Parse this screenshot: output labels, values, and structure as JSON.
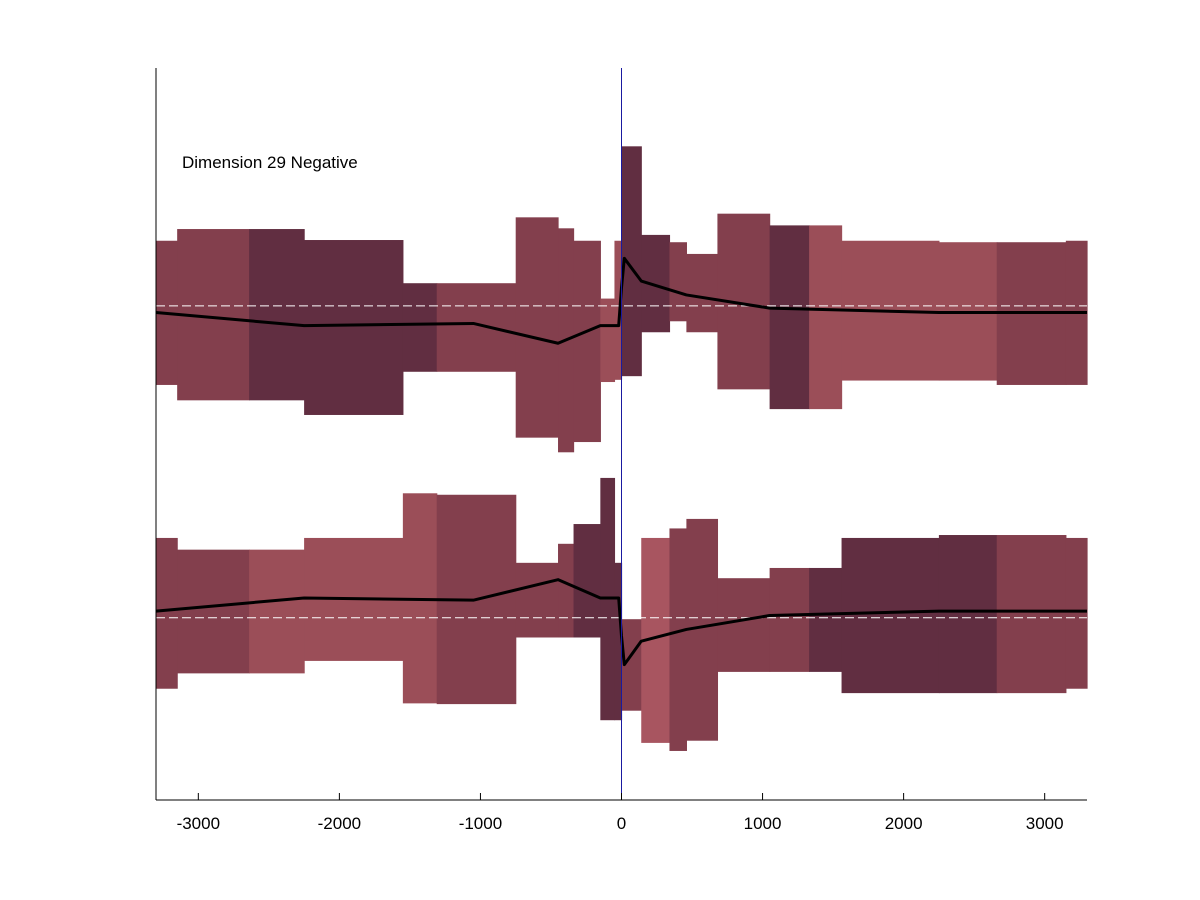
{
  "chart_data": {
    "type": "area",
    "annotation": "Dimension 29 Negative",
    "xlim": [
      -3300,
      3300
    ],
    "ylim": [
      0,
      1
    ],
    "xticks": [
      -3000,
      -2000,
      -1000,
      0,
      1000,
      2000,
      3000
    ],
    "xtick_labels": [
      "-3000",
      "-2000",
      "-1000",
      "0",
      "1000",
      "2000",
      "3000"
    ],
    "zero_line_x": 0,
    "colors": {
      "mid": "#833f4d",
      "dark": "#612e41",
      "light": "#9b4e58",
      "lighter": "#a85560",
      "line": "#000000",
      "reference": "#ffffff",
      "zero_line": "#1a1aa0"
    },
    "panels": [
      {
        "name": "upper",
        "baseline": 0.675,
        "segments": [
          {
            "x0": -3300,
            "x1": -3150,
            "lo": 0.567,
            "hi": 0.764,
            "shade": "mid"
          },
          {
            "x0": -3150,
            "x1": -2640,
            "lo": 0.546,
            "hi": 0.78,
            "shade": "mid"
          },
          {
            "x0": -2640,
            "x1": -2250,
            "lo": 0.546,
            "hi": 0.78,
            "shade": "dark"
          },
          {
            "x0": -2250,
            "x1": -1550,
            "lo": 0.526,
            "hi": 0.765,
            "shade": "dark"
          },
          {
            "x0": -1550,
            "x1": -1310,
            "lo": 0.585,
            "hi": 0.706,
            "shade": "dark"
          },
          {
            "x0": -1310,
            "x1": -750,
            "lo": 0.585,
            "hi": 0.706,
            "shade": "mid"
          },
          {
            "x0": -750,
            "x1": -450,
            "lo": 0.495,
            "hi": 0.796,
            "shade": "mid"
          },
          {
            "x0": -450,
            "x1": -340,
            "lo": 0.475,
            "hi": 0.781,
            "shade": "mid"
          },
          {
            "x0": -340,
            "x1": -150,
            "lo": 0.489,
            "hi": 0.764,
            "shade": "mid"
          },
          {
            "x0": -150,
            "x1": -50,
            "lo": 0.571,
            "hi": 0.685,
            "shade": "light"
          },
          {
            "x0": -50,
            "x1": 0,
            "lo": 0.574,
            "hi": 0.764,
            "shade": "light"
          },
          {
            "x0": 0,
            "x1": 140,
            "lo": 0.579,
            "hi": 0.893,
            "shade": "dark"
          },
          {
            "x0": 140,
            "x1": 340,
            "lo": 0.639,
            "hi": 0.772,
            "shade": "dark"
          },
          {
            "x0": 340,
            "x1": 460,
            "lo": 0.654,
            "hi": 0.762,
            "shade": "mid"
          },
          {
            "x0": 460,
            "x1": 680,
            "lo": 0.639,
            "hi": 0.746,
            "shade": "mid"
          },
          {
            "x0": 680,
            "x1": 1050,
            "lo": 0.561,
            "hi": 0.801,
            "shade": "mid"
          },
          {
            "x0": 1050,
            "x1": 1330,
            "lo": 0.534,
            "hi": 0.785,
            "shade": "dark"
          },
          {
            "x0": 1330,
            "x1": 1560,
            "lo": 0.534,
            "hi": 0.785,
            "shade": "light"
          },
          {
            "x0": 1560,
            "x1": 2250,
            "lo": 0.573,
            "hi": 0.764,
            "shade": "light"
          },
          {
            "x0": 2250,
            "x1": 2660,
            "lo": 0.573,
            "hi": 0.762,
            "shade": "light"
          },
          {
            "x0": 2660,
            "x1": 3150,
            "lo": 0.567,
            "hi": 0.762,
            "shade": "mid"
          },
          {
            "x0": 3150,
            "x1": 3300,
            "lo": 0.567,
            "hi": 0.764,
            "shade": "mid"
          }
        ],
        "mean": {
          "x": [
            -3300,
            -2250,
            -1050,
            -450,
            -150,
            -20,
            0,
            20,
            140,
            460,
            1050,
            2250,
            3300
          ],
          "y": [
            0.666,
            0.648,
            0.651,
            0.624,
            0.648,
            0.648,
            0.7,
            0.74,
            0.709,
            0.69,
            0.672,
            0.666,
            0.666
          ]
        }
      },
      {
        "name": "lower",
        "baseline": 0.249,
        "segments": [
          {
            "x0": -3300,
            "x1": -3150,
            "lo": 0.152,
            "hi": 0.358,
            "shade": "mid"
          },
          {
            "x0": -3150,
            "x1": -2640,
            "lo": 0.173,
            "hi": 0.342,
            "shade": "mid"
          },
          {
            "x0": -2640,
            "x1": -2250,
            "lo": 0.173,
            "hi": 0.342,
            "shade": "light"
          },
          {
            "x0": -2250,
            "x1": -1550,
            "lo": 0.19,
            "hi": 0.358,
            "shade": "light"
          },
          {
            "x0": -1550,
            "x1": -1310,
            "lo": 0.132,
            "hi": 0.419,
            "shade": "light"
          },
          {
            "x0": -1310,
            "x1": -750,
            "lo": 0.131,
            "hi": 0.417,
            "shade": "mid"
          },
          {
            "x0": -750,
            "x1": -450,
            "lo": 0.222,
            "hi": 0.324,
            "shade": "mid"
          },
          {
            "x0": -450,
            "x1": -340,
            "lo": 0.222,
            "hi": 0.35,
            "shade": "mid"
          },
          {
            "x0": -340,
            "x1": -150,
            "lo": 0.222,
            "hi": 0.377,
            "shade": "dark"
          },
          {
            "x0": -150,
            "x1": -50,
            "lo": 0.109,
            "hi": 0.44,
            "shade": "dark"
          },
          {
            "x0": -50,
            "x1": 0,
            "lo": 0.109,
            "hi": 0.324,
            "shade": "dark"
          },
          {
            "x0": 0,
            "x1": 140,
            "lo": 0.122,
            "hi": 0.247,
            "shade": "mid"
          },
          {
            "x0": 140,
            "x1": 340,
            "lo": 0.078,
            "hi": 0.358,
            "shade": "lighter"
          },
          {
            "x0": 340,
            "x1": 460,
            "lo": 0.067,
            "hi": 0.371,
            "shade": "mid"
          },
          {
            "x0": 460,
            "x1": 680,
            "lo": 0.081,
            "hi": 0.384,
            "shade": "mid"
          },
          {
            "x0": 680,
            "x1": 1050,
            "lo": 0.175,
            "hi": 0.303,
            "shade": "mid"
          },
          {
            "x0": 1050,
            "x1": 1330,
            "lo": 0.175,
            "hi": 0.317,
            "shade": "mid"
          },
          {
            "x0": 1330,
            "x1": 1560,
            "lo": 0.175,
            "hi": 0.317,
            "shade": "dark"
          },
          {
            "x0": 1560,
            "x1": 2250,
            "lo": 0.146,
            "hi": 0.358,
            "shade": "dark"
          },
          {
            "x0": 2250,
            "x1": 2660,
            "lo": 0.146,
            "hi": 0.362,
            "shade": "dark"
          },
          {
            "x0": 2660,
            "x1": 3150,
            "lo": 0.146,
            "hi": 0.362,
            "shade": "mid"
          },
          {
            "x0": 3150,
            "x1": 3300,
            "lo": 0.152,
            "hi": 0.358,
            "shade": "mid"
          }
        ],
        "mean": {
          "x": [
            -3300,
            -2250,
            -1050,
            -450,
            -150,
            -20,
            0,
            20,
            140,
            460,
            1050,
            2250,
            3300
          ],
          "y": [
            0.258,
            0.276,
            0.273,
            0.301,
            0.276,
            0.276,
            0.224,
            0.185,
            0.217,
            0.233,
            0.252,
            0.258,
            0.258
          ]
        }
      }
    ]
  }
}
